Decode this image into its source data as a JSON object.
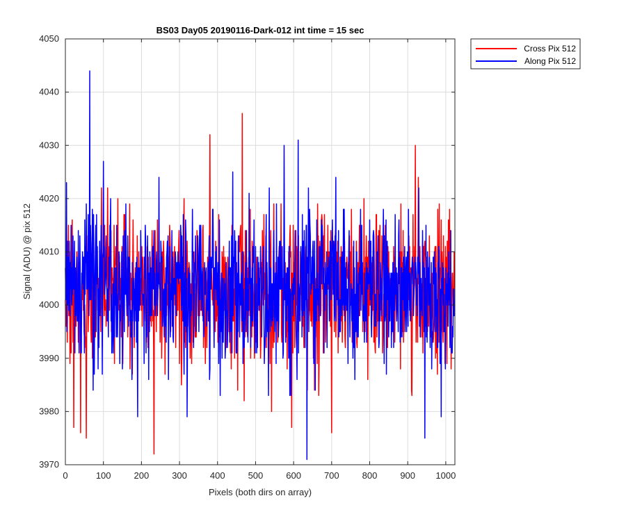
{
  "chart_data": {
    "type": "line",
    "title": "BS03 Day05 20190116-Dark-012 int time = 15 sec",
    "xlabel": "Pixels (both dirs on array)",
    "ylabel": "Signal (ADU) @ pix 512",
    "xlim": [
      0,
      1024
    ],
    "ylim": [
      3970,
      4050
    ],
    "xticks": [
      0,
      100,
      200,
      300,
      400,
      500,
      600,
      700,
      800,
      900,
      1000
    ],
    "yticks": [
      3970,
      3980,
      3990,
      4000,
      4010,
      4020,
      4030,
      4040,
      4050
    ],
    "grid": true,
    "legend_position": "outside-top-right",
    "n_points": 1024,
    "noise_model": {
      "mean": 4003,
      "std": 7,
      "seed": {
        "cross": 512,
        "along": 1024
      }
    },
    "series": [
      {
        "name": "Cross Pix 512",
        "color": "#ff0000",
        "peaks": [
          [
            55,
            3975
          ],
          [
            233,
            3972
          ],
          [
            380,
            4032
          ],
          [
            465,
            4036
          ],
          [
            470,
            3982
          ],
          [
            542,
            3980
          ],
          [
            595,
            3977
          ],
          [
            700,
            3976
          ],
          [
            920,
            4030
          ],
          [
            40,
            3976
          ],
          [
            22,
            3977
          ]
        ]
      },
      {
        "name": "Along Pix 512",
        "color": "#0000ff",
        "peaks": [
          [
            64,
            4044
          ],
          [
            3,
            4023
          ],
          [
            635,
            3971
          ],
          [
            612,
            4031
          ],
          [
            575,
            4030
          ],
          [
            190,
            3979
          ],
          [
            320,
            3979
          ],
          [
            945,
            3975
          ],
          [
            988,
            3979
          ],
          [
            440,
            4025
          ],
          [
            100,
            4027
          ]
        ]
      }
    ]
  }
}
